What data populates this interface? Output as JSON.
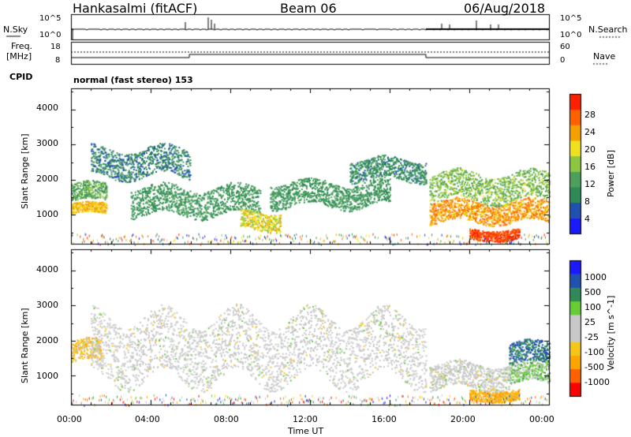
{
  "header": {
    "station": "Hankasalmi (fitACF)",
    "beam": "Beam 06",
    "date": "06/Aug/2018"
  },
  "strip": {
    "nsky_label": "N.Sky",
    "nsky_top": "10^5",
    "nsky_bottom": "10^0",
    "nsearch_label": "N.Search",
    "nsearch_top": "10^5",
    "nsearch_bottom": "10^0",
    "freq_label_1": "Freq.",
    "freq_label_2": "[MHz]",
    "freq_top": "18",
    "freq_bottom": "8",
    "nave_label": "Nave",
    "nave_top": "60",
    "nave_bottom": "0",
    "cpid_label": "CPID",
    "cpid_value": "normal (fast stereo) 153"
  },
  "colors": {
    "power": [
      "#1a1aff",
      "#2050b0",
      "#2e8b57",
      "#4ca05a",
      "#8cc63f",
      "#f0e020",
      "#f5a000",
      "#ff6000",
      "#ff2000"
    ],
    "velocity": [
      "#ff0000",
      "#ff6000",
      "#ffa500",
      "#f5c518",
      "#c8c8c8",
      "#c8c8c8",
      "#66cc33",
      "#2e8b57",
      "#2050b0",
      "#1a1aff"
    ]
  },
  "chart_data": [
    {
      "type": "heatmap",
      "title": "Power",
      "ylabel": "Slant Range [km]",
      "xlabel": "Time UT",
      "x_ticks": [
        "00:00",
        "04:00",
        "08:00",
        "12:00",
        "16:00",
        "20:00",
        "00:00"
      ],
      "y_ticks": [
        "1000",
        "2000",
        "3000",
        "4000"
      ],
      "xlim_hours": [
        0,
        24
      ],
      "ylim_km": [
        180,
        4600
      ],
      "colorbar_label": "Power [dB]",
      "colorbar_ticks": [
        "4",
        "8",
        "12",
        "16",
        "20",
        "24",
        "28"
      ],
      "color_range": [
        0,
        30
      ],
      "echo_bands": [
        {
          "start": 0.0,
          "end": 1.8,
          "center": 1200,
          "width": 150,
          "value": 20
        },
        {
          "start": 0.0,
          "end": 1.8,
          "center": 1650,
          "width": 250,
          "value": 12
        },
        {
          "start": 1.0,
          "end": 6.0,
          "center": 2500,
          "width": 400,
          "value": 8
        },
        {
          "start": 3.0,
          "end": 9.5,
          "center": 1400,
          "width": 400,
          "value": 10
        },
        {
          "start": 8.5,
          "end": 10.5,
          "center": 850,
          "width": 250,
          "value": 18
        },
        {
          "start": 10.0,
          "end": 16.0,
          "center": 1600,
          "width": 350,
          "value": 10
        },
        {
          "start": 14.0,
          "end": 17.8,
          "center": 2300,
          "width": 300,
          "value": 9
        },
        {
          "start": 18.0,
          "end": 24.0,
          "center": 1100,
          "width": 300,
          "value": 22
        },
        {
          "start": 18.0,
          "end": 24.0,
          "center": 1800,
          "width": 400,
          "value": 14
        },
        {
          "start": 20.0,
          "end": 22.5,
          "center": 450,
          "width": 150,
          "value": 27
        }
      ]
    },
    {
      "type": "heatmap",
      "title": "Velocity",
      "ylabel": "Slant Range [km]",
      "xlabel": "Time UT",
      "x_ticks": [
        "00:00",
        "04:00",
        "08:00",
        "12:00",
        "16:00",
        "20:00",
        "00:00"
      ],
      "y_ticks": [
        "1000",
        "2000",
        "3000",
        "4000"
      ],
      "xlim_hours": [
        0,
        24
      ],
      "ylim_km": [
        180,
        4600
      ],
      "colorbar_label": "Velocity [m s^-1]",
      "colorbar_ticks": [
        "1000",
        "500",
        "100",
        "25",
        "-25",
        "-100",
        "-500",
        "-1000"
      ],
      "color_range": [
        -1000,
        1000
      ],
      "echo_bands": [
        {
          "start": 0.0,
          "end": 1.5,
          "center": 1700,
          "width": 300,
          "value": -300
        },
        {
          "start": 1.0,
          "end": 17.8,
          "center": 1800,
          "width": 900,
          "value": 0
        },
        {
          "start": 18.0,
          "end": 22.0,
          "center": 1000,
          "width": 350,
          "value": 0
        },
        {
          "start": 22.0,
          "end": 24.0,
          "center": 1100,
          "width": 300,
          "value": 250
        },
        {
          "start": 22.0,
          "end": 24.0,
          "center": 1650,
          "width": 300,
          "value": 600
        },
        {
          "start": 20.0,
          "end": 22.5,
          "center": 450,
          "width": 150,
          "value": -400
        }
      ]
    }
  ]
}
